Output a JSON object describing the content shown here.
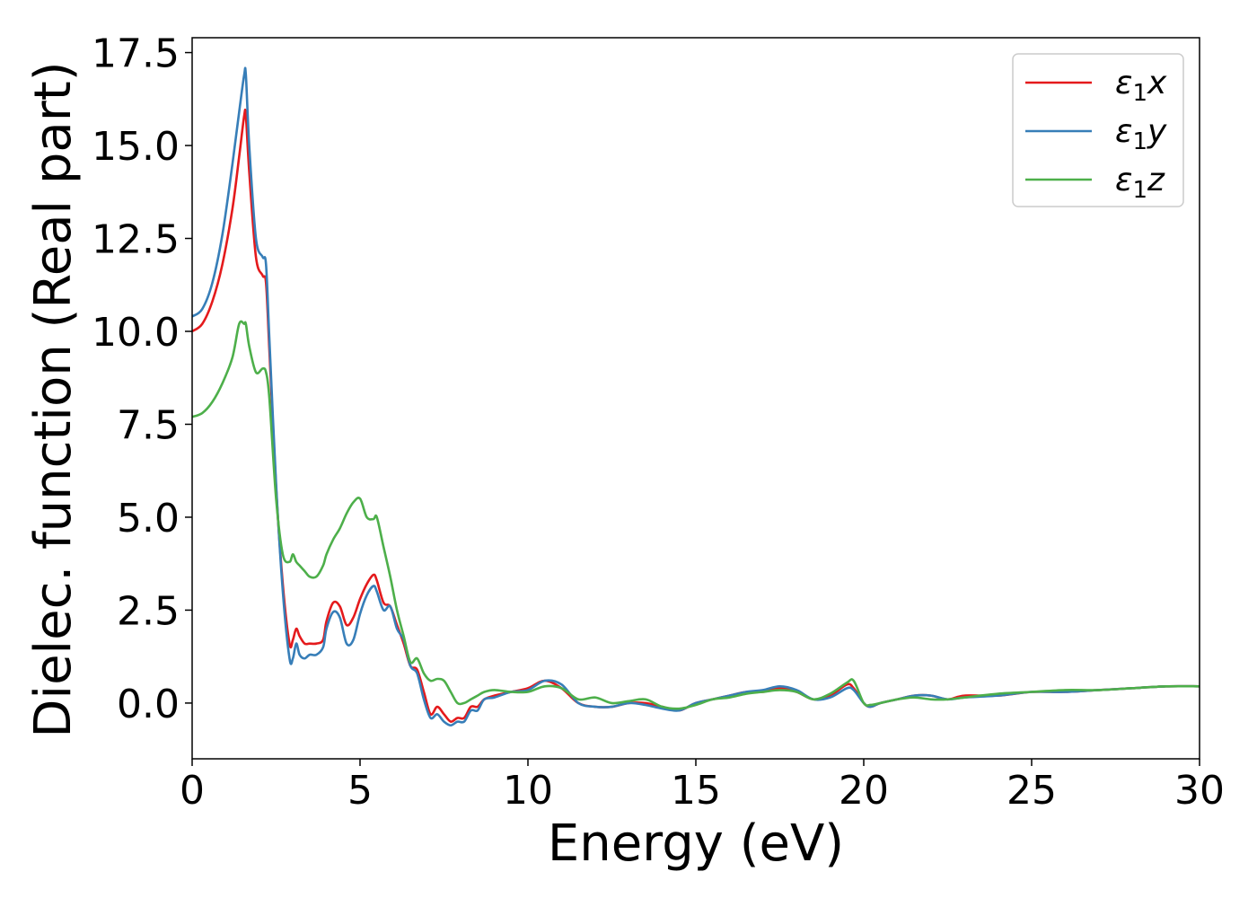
{
  "chart_data": {
    "type": "line",
    "xlabel": "Energy (eV)",
    "ylabel": "Dielec. function (Real part)",
    "xlim": [
      0,
      30
    ],
    "ylim": [
      -1.5,
      17.9
    ],
    "xticks": [
      0,
      5,
      10,
      15,
      20,
      25,
      30
    ],
    "xtick_labels": [
      "0",
      "5",
      "10",
      "15",
      "20",
      "25",
      "30"
    ],
    "yticks": [
      0.0,
      2.5,
      5.0,
      7.5,
      10.0,
      12.5,
      15.0,
      17.5
    ],
    "ytick_labels": [
      "0.0",
      "2.5",
      "5.0",
      "7.5",
      "10.0",
      "12.5",
      "15.0",
      "17.5"
    ],
    "grid": false,
    "legend_position": "top-right",
    "series": [
      {
        "name": "ε1x",
        "legend_base": "ε",
        "legend_sub": "1",
        "legend_suffix": "x",
        "color": "#e41a1c",
        "x": [
          0,
          0.3,
          0.6,
          0.9,
          1.2,
          1.4,
          1.55,
          1.6,
          1.7,
          1.9,
          2.1,
          2.2,
          2.3,
          2.5,
          2.7,
          2.9,
          3.0,
          3.1,
          3.2,
          3.35,
          3.5,
          3.7,
          3.9,
          4.0,
          4.2,
          4.4,
          4.6,
          4.8,
          5.0,
          5.2,
          5.4,
          5.5,
          5.7,
          5.9,
          6.1,
          6.3,
          6.5,
          6.7,
          6.9,
          7.1,
          7.3,
          7.5,
          7.7,
          7.9,
          8.1,
          8.3,
          8.5,
          8.7,
          9.0,
          9.5,
          10.0,
          10.5,
          11.0,
          11.5,
          12.0,
          12.5,
          13.0,
          13.5,
          14.0,
          14.5,
          15.0,
          15.5,
          16.0,
          16.5,
          17.0,
          17.5,
          18.0,
          18.5,
          19.0,
          19.5,
          19.7,
          20.0,
          20.2,
          20.5,
          21.0,
          21.5,
          22.0,
          22.5,
          23.0,
          24.0,
          25.0,
          26.0,
          27.0,
          28.0,
          29.0,
          30.0
        ],
        "y": [
          10.0,
          10.2,
          10.8,
          11.8,
          13.3,
          14.7,
          15.8,
          15.8,
          14.3,
          12.0,
          11.5,
          11.3,
          9.5,
          5.8,
          3.2,
          1.6,
          1.7,
          2.0,
          1.8,
          1.6,
          1.6,
          1.6,
          1.7,
          2.2,
          2.7,
          2.6,
          2.1,
          2.3,
          2.8,
          3.2,
          3.45,
          3.3,
          2.7,
          2.6,
          2.1,
          1.6,
          1.0,
          0.9,
          0.3,
          -0.3,
          -0.1,
          -0.3,
          -0.5,
          -0.4,
          -0.4,
          -0.1,
          -0.1,
          0.1,
          0.2,
          0.3,
          0.4,
          0.6,
          0.4,
          0.0,
          -0.1,
          -0.1,
          0.0,
          0.0,
          -0.1,
          -0.2,
          0.0,
          0.1,
          0.2,
          0.3,
          0.3,
          0.4,
          0.3,
          0.1,
          0.2,
          0.5,
          0.4,
          0.0,
          -0.1,
          0.0,
          0.1,
          0.2,
          0.2,
          0.1,
          0.2,
          0.2,
          0.3,
          0.3,
          0.35,
          0.4,
          0.45,
          0.45
        ]
      },
      {
        "name": "ε1y",
        "legend_base": "ε",
        "legend_sub": "1",
        "legend_suffix": "y",
        "color": "#377eb8",
        "x": [
          0,
          0.3,
          0.6,
          0.9,
          1.2,
          1.4,
          1.55,
          1.6,
          1.7,
          1.9,
          2.1,
          2.2,
          2.3,
          2.5,
          2.7,
          2.9,
          3.0,
          3.1,
          3.2,
          3.35,
          3.5,
          3.7,
          3.9,
          4.0,
          4.2,
          4.4,
          4.6,
          4.8,
          5.0,
          5.2,
          5.4,
          5.5,
          5.7,
          5.9,
          6.1,
          6.3,
          6.5,
          6.7,
          6.9,
          7.1,
          7.3,
          7.5,
          7.7,
          7.9,
          8.1,
          8.3,
          8.5,
          8.7,
          9.0,
          9.5,
          10.0,
          10.5,
          11.0,
          11.5,
          12.0,
          12.5,
          13.0,
          13.5,
          14.0,
          14.5,
          15.0,
          15.5,
          16.0,
          16.5,
          17.0,
          17.5,
          18.0,
          18.5,
          19.0,
          19.5,
          19.7,
          20.0,
          20.2,
          20.5,
          21.0,
          21.5,
          22.0,
          22.5,
          23.0,
          24.0,
          25.0,
          26.0,
          27.0,
          28.0,
          29.0,
          30.0
        ],
        "y": [
          10.4,
          10.6,
          11.3,
          12.6,
          14.5,
          15.9,
          16.9,
          16.9,
          15.0,
          12.5,
          12.0,
          11.8,
          9.8,
          5.9,
          3.0,
          1.2,
          1.2,
          1.6,
          1.3,
          1.2,
          1.3,
          1.3,
          1.5,
          2.0,
          2.45,
          2.3,
          1.6,
          1.7,
          2.4,
          2.9,
          3.15,
          3.0,
          2.5,
          2.6,
          2.0,
          1.7,
          1.0,
          0.8,
          0.1,
          -0.4,
          -0.3,
          -0.5,
          -0.6,
          -0.5,
          -0.5,
          -0.2,
          -0.2,
          0.1,
          0.15,
          0.3,
          0.35,
          0.6,
          0.5,
          0.0,
          -0.1,
          -0.1,
          0.0,
          -0.05,
          -0.15,
          -0.2,
          0.0,
          0.1,
          0.2,
          0.3,
          0.35,
          0.45,
          0.35,
          0.1,
          0.15,
          0.4,
          0.35,
          0.0,
          -0.1,
          0.0,
          0.1,
          0.2,
          0.2,
          0.1,
          0.15,
          0.2,
          0.3,
          0.3,
          0.35,
          0.4,
          0.45,
          0.45
        ]
      },
      {
        "name": "ε1z",
        "legend_base": "ε",
        "legend_sub": "1",
        "legend_suffix": "z",
        "color": "#4daf4a",
        "x": [
          0,
          0.3,
          0.6,
          0.9,
          1.2,
          1.4,
          1.55,
          1.6,
          1.7,
          1.9,
          2.1,
          2.2,
          2.3,
          2.5,
          2.7,
          2.9,
          3.0,
          3.1,
          3.2,
          3.35,
          3.5,
          3.7,
          3.9,
          4.0,
          4.2,
          4.4,
          4.6,
          4.8,
          5.0,
          5.2,
          5.4,
          5.5,
          5.7,
          5.9,
          6.1,
          6.3,
          6.5,
          6.7,
          6.9,
          7.1,
          7.3,
          7.5,
          7.7,
          7.9,
          8.1,
          8.3,
          8.5,
          8.7,
          9.0,
          9.5,
          10.0,
          10.5,
          11.0,
          11.5,
          12.0,
          12.5,
          13.0,
          13.5,
          14.0,
          14.5,
          15.0,
          15.5,
          16.0,
          16.5,
          17.0,
          17.5,
          18.0,
          18.5,
          19.0,
          19.5,
          19.7,
          20.0,
          20.2,
          20.5,
          21.0,
          21.5,
          22.0,
          22.5,
          23.0,
          24.0,
          25.0,
          26.0,
          27.0,
          28.0,
          29.0,
          30.0
        ],
        "y": [
          7.7,
          7.8,
          8.1,
          8.6,
          9.3,
          10.2,
          10.2,
          10.2,
          9.6,
          8.9,
          9.0,
          8.9,
          8.2,
          5.5,
          4.0,
          3.8,
          4.0,
          3.8,
          3.7,
          3.55,
          3.4,
          3.4,
          3.7,
          4.0,
          4.4,
          4.7,
          5.1,
          5.4,
          5.5,
          5.0,
          4.95,
          5.0,
          4.2,
          3.4,
          2.5,
          1.8,
          1.1,
          1.2,
          0.8,
          0.6,
          0.65,
          0.6,
          0.3,
          0.0,
          0.0,
          0.1,
          0.2,
          0.3,
          0.35,
          0.3,
          0.3,
          0.45,
          0.4,
          0.1,
          0.15,
          0.0,
          0.05,
          0.1,
          -0.1,
          -0.15,
          -0.05,
          0.1,
          0.15,
          0.25,
          0.3,
          0.35,
          0.3,
          0.1,
          0.25,
          0.55,
          0.6,
          0.0,
          -0.05,
          0.0,
          0.1,
          0.15,
          0.1,
          0.1,
          0.15,
          0.25,
          0.3,
          0.35,
          0.35,
          0.4,
          0.45,
          0.45
        ]
      }
    ]
  }
}
